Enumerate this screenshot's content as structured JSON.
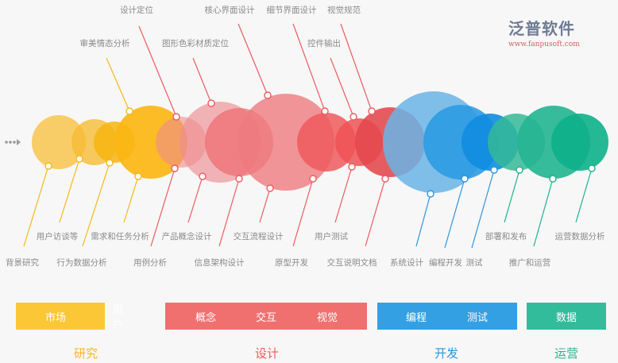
{
  "colors": {
    "research": "#fbc737",
    "design": "#f07070",
    "dev": "#34a0e4",
    "ops": "#33bc9c"
  },
  "top_labels": [
    "审美情态分析",
    "设计定位",
    "图形色彩材质定位",
    "核心界面设计",
    "细节界面设计",
    "控件输出",
    "视觉规范"
  ],
  "bottom_labels": [
    "背景研究",
    "用户访谈等",
    "行为数据分析",
    "需求和任务分析",
    "用例分析",
    "产品概念设计",
    "信息架构设计",
    "交互流程设计",
    "原型开发",
    "用户测试",
    "交互说明文档",
    "系统设计",
    "编程开发",
    "测试",
    "部署和发布",
    "推广和运营",
    "运营数据分析"
  ],
  "stages": [
    {
      "phase": "研究",
      "items": [
        "市场",
        "用户"
      ]
    },
    {
      "phase": "设计",
      "items": [
        "概念",
        "交互",
        "视觉"
      ]
    },
    {
      "phase": "开发",
      "items": [
        "编程",
        "测试"
      ]
    },
    {
      "phase": "运营",
      "items": [
        "数据"
      ]
    }
  ],
  "watermark": {
    "name": "泛普软件",
    "url": "www.fanpusoft.com"
  }
}
